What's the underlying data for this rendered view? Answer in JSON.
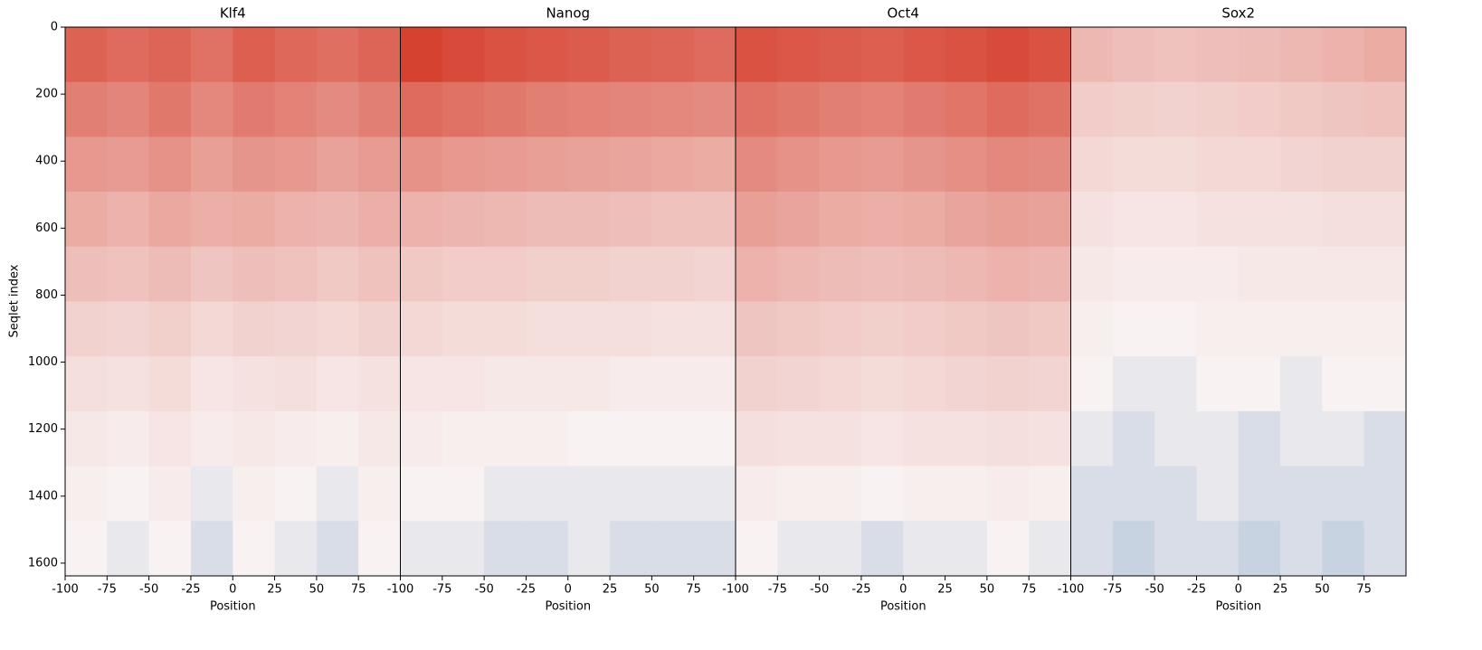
{
  "chart_data": [
    {
      "type": "heatmap",
      "title": "Klf4",
      "xlabel": "Position",
      "ylabel": "Seqlet index",
      "xlim": [
        -100,
        100
      ],
      "xticks": [
        -100,
        -75,
        -50,
        -25,
        0,
        25,
        50,
        75
      ],
      "ylim": [
        0,
        1638
      ],
      "y_inverted": true,
      "yticks": [
        0,
        200,
        400,
        600,
        800,
        1000,
        1200,
        1400,
        1600
      ],
      "z": [
        [
          0.45,
          0.42,
          0.44,
          0.4,
          0.46,
          0.43,
          0.41,
          0.44
        ],
        [
          0.36,
          0.34,
          0.38,
          0.33,
          0.37,
          0.35,
          0.32,
          0.36
        ],
        [
          0.28,
          0.27,
          0.3,
          0.26,
          0.29,
          0.28,
          0.25,
          0.27
        ],
        [
          0.22,
          0.2,
          0.23,
          0.21,
          0.22,
          0.2,
          0.19,
          0.21
        ],
        [
          0.16,
          0.15,
          0.17,
          0.14,
          0.16,
          0.15,
          0.13,
          0.15
        ],
        [
          0.1,
          0.09,
          0.11,
          0.08,
          0.1,
          0.09,
          0.08,
          0.1
        ],
        [
          0.06,
          0.05,
          0.07,
          0.04,
          0.05,
          0.06,
          0.04,
          0.05
        ],
        [
          0.03,
          0.02,
          0.04,
          0.02,
          0.03,
          0.02,
          0.01,
          0.03
        ],
        [
          0.01,
          0.0,
          0.02,
          -0.01,
          0.01,
          0.0,
          -0.01,
          0.01
        ],
        [
          0.0,
          -0.01,
          0.0,
          -0.02,
          0.0,
          -0.01,
          -0.02,
          0.0
        ]
      ]
    },
    {
      "type": "heatmap",
      "title": "Nanog",
      "xlabel": "Position",
      "xlim": [
        -100,
        100
      ],
      "xticks": [
        -100,
        -75,
        -50,
        -25,
        0,
        25,
        50,
        75
      ],
      "ylim": [
        0,
        1638
      ],
      "y_inverted": true,
      "z": [
        [
          0.55,
          0.52,
          0.5,
          0.48,
          0.47,
          0.45,
          0.44,
          0.42
        ],
        [
          0.42,
          0.4,
          0.38,
          0.36,
          0.35,
          0.34,
          0.33,
          0.32
        ],
        [
          0.3,
          0.28,
          0.27,
          0.26,
          0.25,
          0.24,
          0.23,
          0.22
        ],
        [
          0.2,
          0.19,
          0.18,
          0.17,
          0.17,
          0.16,
          0.15,
          0.15
        ],
        [
          0.13,
          0.12,
          0.12,
          0.11,
          0.11,
          0.1,
          0.1,
          0.09
        ],
        [
          0.08,
          0.07,
          0.07,
          0.06,
          0.06,
          0.06,
          0.05,
          0.05
        ],
        [
          0.04,
          0.04,
          0.03,
          0.03,
          0.03,
          0.02,
          0.02,
          0.02
        ],
        [
          0.02,
          0.01,
          0.01,
          0.01,
          0.0,
          0.0,
          0.0,
          0.0
        ],
        [
          0.0,
          0.0,
          -0.01,
          -0.01,
          -0.01,
          -0.01,
          -0.01,
          -0.01
        ],
        [
          -0.01,
          -0.01,
          -0.02,
          -0.02,
          -0.01,
          -0.02,
          -0.02,
          -0.02
        ]
      ]
    },
    {
      "type": "heatmap",
      "title": "Oct4",
      "xlabel": "Position",
      "xlim": [
        -100,
        100
      ],
      "xticks": [
        -100,
        -75,
        -50,
        -25,
        0,
        25,
        50,
        75
      ],
      "ylim": [
        0,
        1638
      ],
      "y_inverted": true,
      "z": [
        [
          0.5,
          0.48,
          0.47,
          0.46,
          0.48,
          0.5,
          0.52,
          0.5
        ],
        [
          0.4,
          0.38,
          0.36,
          0.35,
          0.37,
          0.39,
          0.42,
          0.4
        ],
        [
          0.32,
          0.3,
          0.28,
          0.27,
          0.29,
          0.31,
          0.33,
          0.32
        ],
        [
          0.26,
          0.24,
          0.22,
          0.21,
          0.22,
          0.24,
          0.26,
          0.25
        ],
        [
          0.2,
          0.18,
          0.17,
          0.16,
          0.17,
          0.18,
          0.2,
          0.19
        ],
        [
          0.14,
          0.13,
          0.12,
          0.11,
          0.12,
          0.13,
          0.14,
          0.13
        ],
        [
          0.1,
          0.09,
          0.08,
          0.07,
          0.08,
          0.09,
          0.1,
          0.09
        ],
        [
          0.06,
          0.05,
          0.05,
          0.04,
          0.05,
          0.05,
          0.06,
          0.05
        ],
        [
          0.02,
          0.01,
          0.01,
          0.0,
          0.01,
          0.01,
          0.02,
          0.01
        ],
        [
          0.0,
          -0.01,
          -0.01,
          -0.02,
          -0.01,
          -0.01,
          0.0,
          -0.01
        ]
      ]
    },
    {
      "type": "heatmap",
      "title": "Sox2",
      "xlabel": "Position",
      "xlim": [
        -100,
        100
      ],
      "xticks": [
        -100,
        -75,
        -50,
        -25,
        0,
        25,
        50,
        75
      ],
      "ylim": [
        0,
        1638
      ],
      "y_inverted": true,
      "z": [
        [
          0.18,
          0.16,
          0.15,
          0.16,
          0.17,
          0.18,
          0.2,
          0.22
        ],
        [
          0.12,
          0.11,
          0.1,
          0.11,
          0.12,
          0.13,
          0.14,
          0.15
        ],
        [
          0.08,
          0.07,
          0.07,
          0.08,
          0.08,
          0.09,
          0.1,
          0.1
        ],
        [
          0.05,
          0.04,
          0.04,
          0.05,
          0.05,
          0.05,
          0.06,
          0.06
        ],
        [
          0.03,
          0.02,
          0.02,
          0.02,
          0.03,
          0.03,
          0.03,
          0.03
        ],
        [
          0.01,
          0.0,
          0.0,
          0.01,
          0.01,
          0.01,
          0.01,
          0.01
        ],
        [
          0.0,
          -0.01,
          -0.01,
          0.0,
          0.0,
          -0.01,
          0.0,
          0.0
        ],
        [
          -0.01,
          -0.02,
          -0.01,
          -0.01,
          -0.02,
          -0.01,
          -0.01,
          -0.02
        ],
        [
          -0.02,
          -0.02,
          -0.02,
          -0.01,
          -0.02,
          -0.02,
          -0.02,
          -0.02
        ],
        [
          -0.02,
          -0.03,
          -0.02,
          -0.02,
          -0.03,
          -0.02,
          -0.03,
          -0.02
        ]
      ]
    }
  ]
}
